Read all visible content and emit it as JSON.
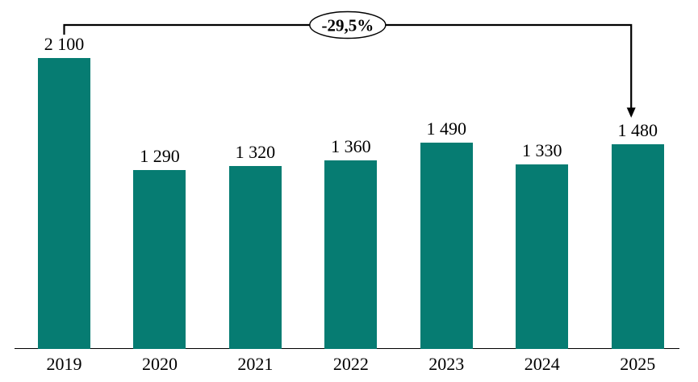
{
  "chart_data": {
    "type": "bar",
    "title": "",
    "xlabel": "",
    "ylabel": "",
    "categories": [
      "2019",
      "2020",
      "2021",
      "2022",
      "2023",
      "2024",
      "2025"
    ],
    "values": [
      2100,
      1290,
      1320,
      1360,
      1490,
      1330,
      1480
    ],
    "value_labels": [
      "2 100",
      "1 290",
      "1 320",
      "1 360",
      "1 490",
      "1 330",
      "1 480"
    ],
    "ylim": [
      0,
      2100
    ],
    "grid": false,
    "legend": false,
    "bar_color": "#067C72",
    "axis_color": "#000000",
    "label_color": "#000000",
    "annotation": {
      "label": "-29,5%",
      "from_category": "2019",
      "to_category": "2025",
      "shape": "ellipse",
      "line_color": "#000000",
      "bubble_fill": "#ffffff"
    }
  }
}
